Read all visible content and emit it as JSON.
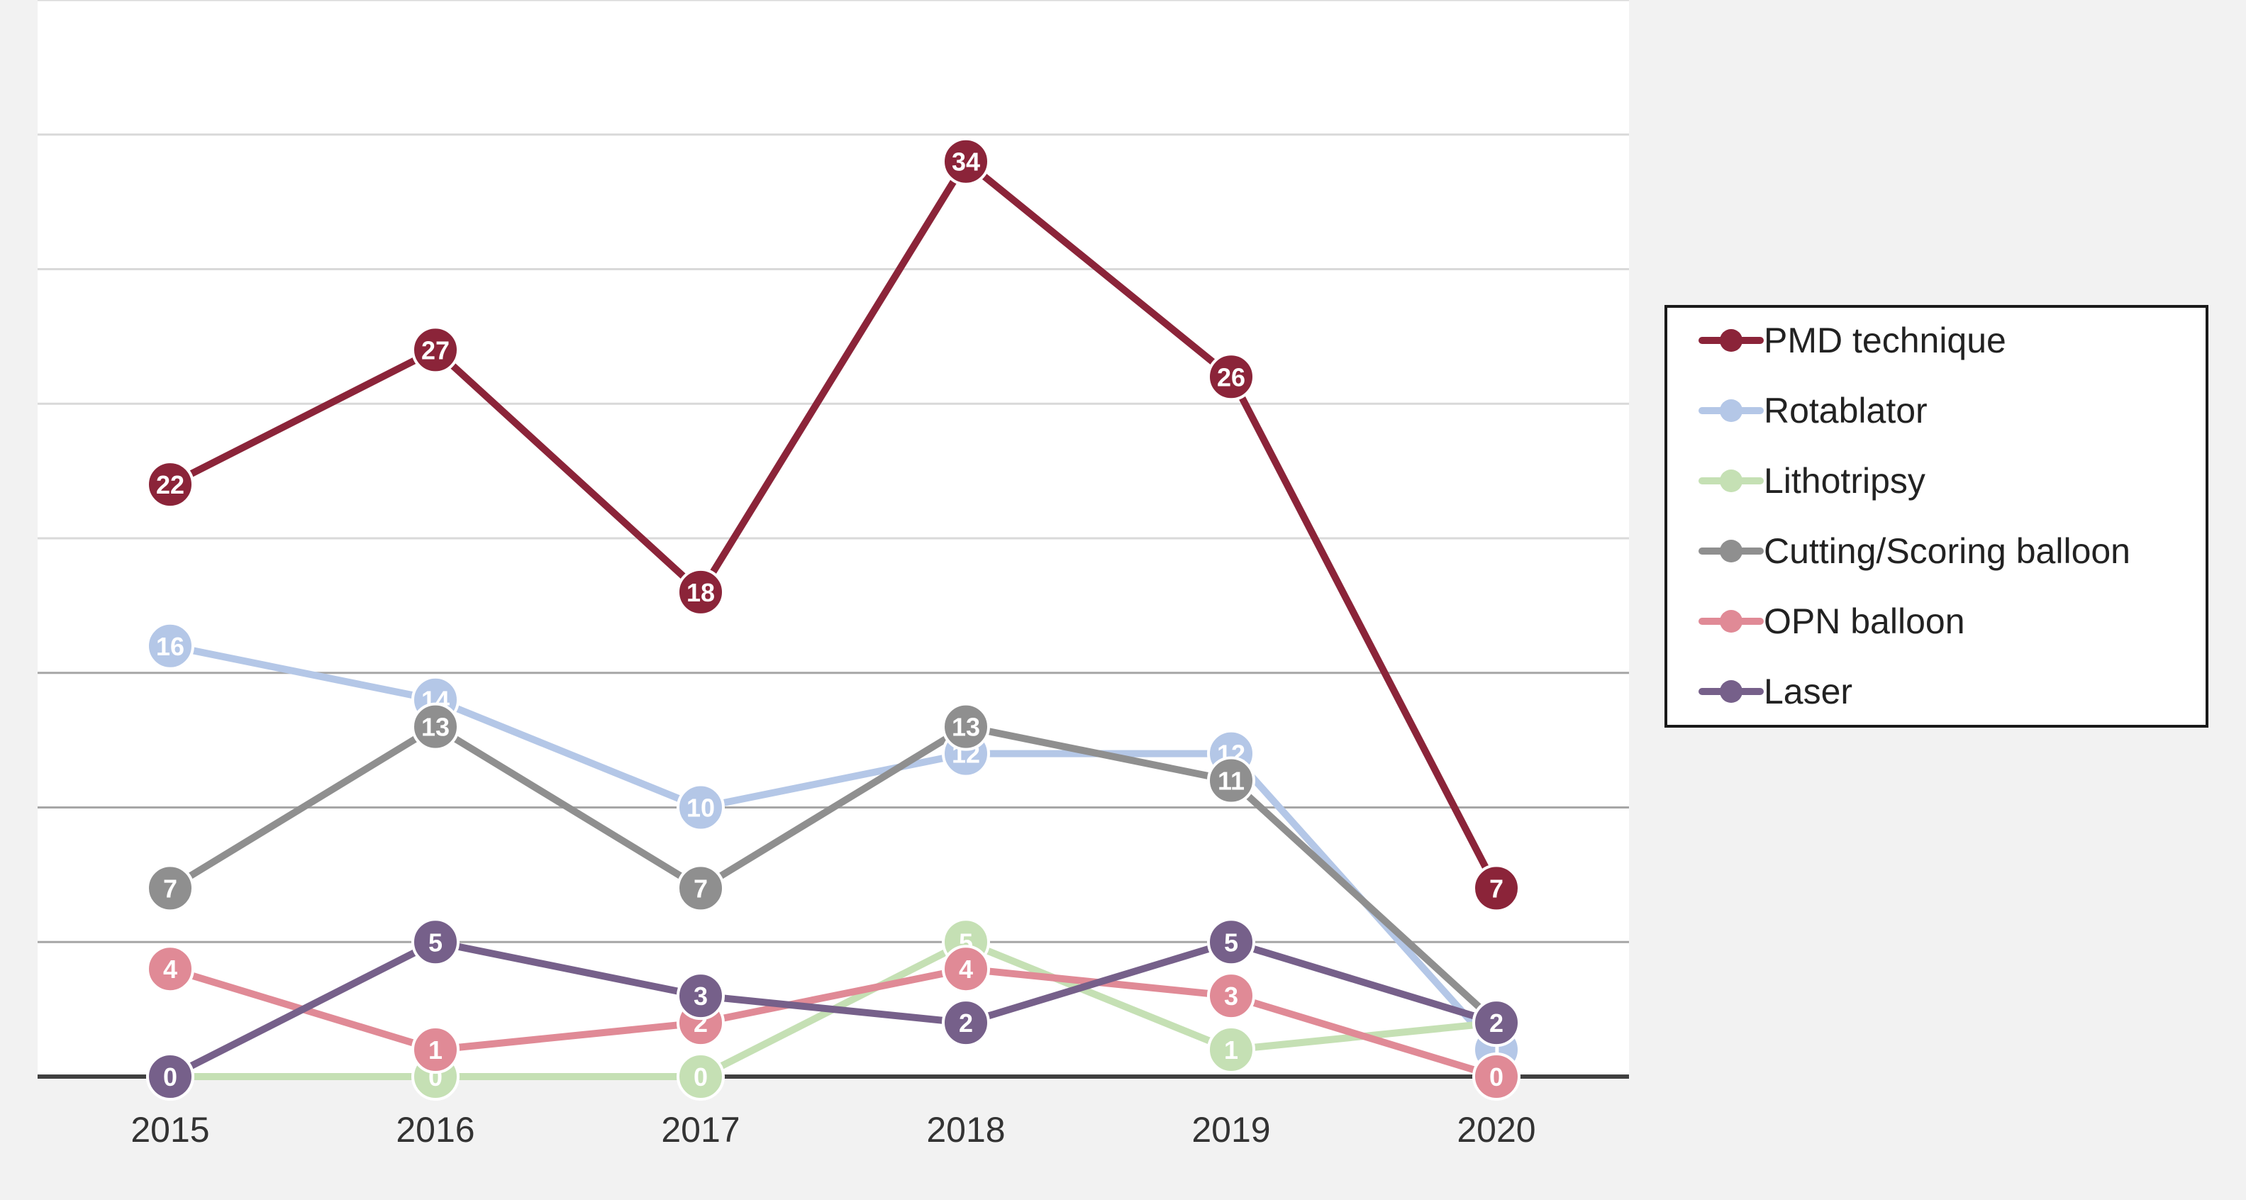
{
  "chart_data": {
    "type": "line",
    "title": "",
    "xlabel": "",
    "ylabel": "",
    "x": [
      "2015",
      "2016",
      "2017",
      "2018",
      "2019",
      "2020"
    ],
    "ylim": [
      0,
      40
    ],
    "grid": true,
    "legend_position": "right",
    "series": [
      {
        "name": "PMD technique",
        "color": "#8b2439",
        "values": [
          22,
          27,
          18,
          34,
          26,
          7
        ]
      },
      {
        "name": "Rotablator",
        "color": "#b4c7e7",
        "values": [
          16,
          14,
          10,
          12,
          12,
          1
        ]
      },
      {
        "name": "Lithotripsy",
        "color": "#c5e0b4",
        "values": [
          0,
          0,
          0,
          5,
          1,
          2
        ]
      },
      {
        "name": "Cutting/Scoring balloon",
        "color": "#8f8f8f",
        "values": [
          7,
          13,
          7,
          13,
          11,
          2
        ]
      },
      {
        "name": "OPN balloon",
        "color": "#e08a96",
        "values": [
          4,
          1,
          2,
          4,
          3,
          0
        ]
      },
      {
        "name": "Laser",
        "color": "#76608a",
        "values": [
          0,
          5,
          3,
          2,
          5,
          2
        ]
      }
    ]
  }
}
